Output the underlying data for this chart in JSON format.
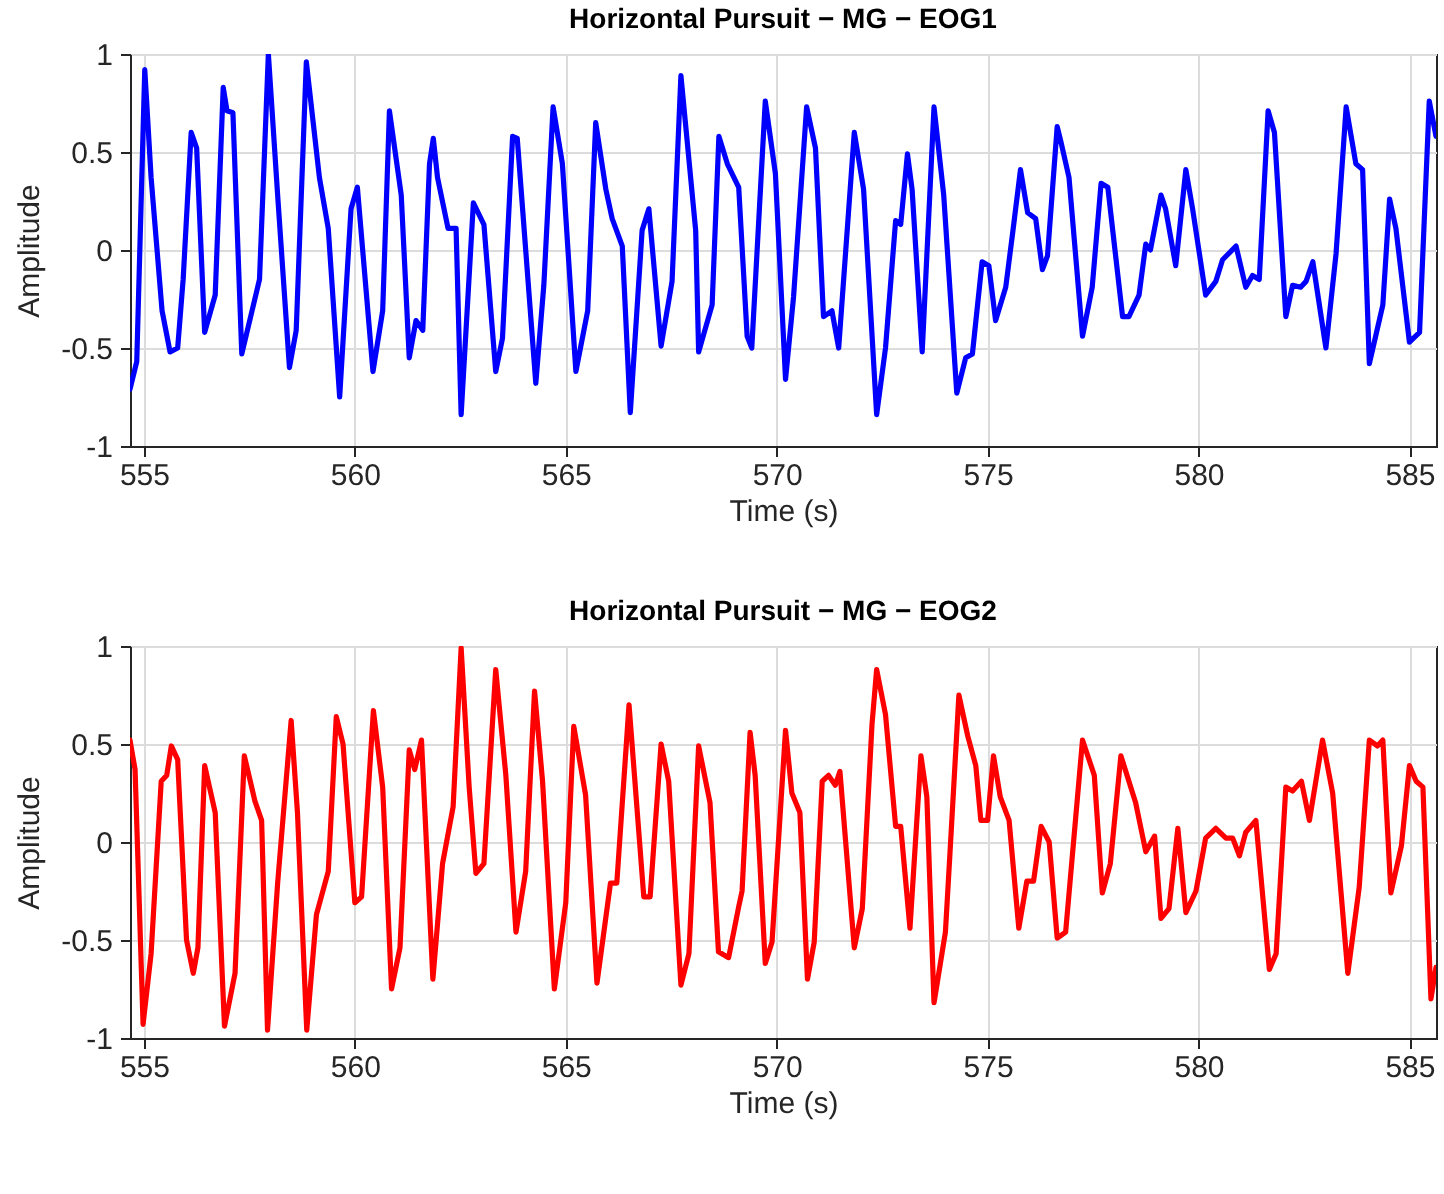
{
  "chart_data": [
    {
      "type": "line",
      "title": "Horizontal Pursuit − MG − EOG1",
      "xlabel": "Time (s)",
      "ylabel": "Amplitude",
      "xlim": [
        554.67,
        585.63
      ],
      "ylim": [
        -1,
        1
      ],
      "xticks": [
        555,
        560,
        565,
        570,
        575,
        580,
        585
      ],
      "yticks": [
        -1,
        -0.5,
        0,
        0.5,
        1
      ],
      "grid": true,
      "marker": "none",
      "line_style": "solid",
      "x": [
        554.67,
        554.83,
        555.02,
        555.17,
        555.43,
        555.62,
        555.8,
        555.93,
        556.12,
        556.25,
        556.44,
        556.69,
        556.88,
        556.97,
        557.11,
        557.32,
        557.74,
        557.95,
        558.17,
        558.45,
        558.61,
        558.85,
        559.16,
        559.37,
        559.64,
        559.91,
        560.06,
        560.43,
        560.66,
        560.82,
        561.1,
        561.29,
        561.45,
        561.61,
        561.77,
        561.86,
        561.96,
        562.21,
        562.4,
        562.52,
        562.81,
        563.06,
        563.34,
        563.5,
        563.74,
        563.85,
        564.29,
        564.48,
        564.7,
        564.92,
        565.24,
        565.52,
        565.71,
        565.95,
        566.1,
        566.34,
        566.53,
        566.81,
        566.97,
        567.26,
        567.52,
        567.73,
        568.08,
        568.15,
        568.47,
        568.63,
        568.83,
        569.1,
        569.3,
        569.41,
        569.73,
        569.97,
        570.21,
        570.4,
        570.71,
        570.92,
        571.11,
        571.31,
        571.47,
        571.84,
        572.06,
        572.37,
        572.58,
        572.82,
        572.94,
        573.1,
        573.21,
        573.45,
        573.73,
        573.96,
        574.27,
        574.48,
        574.64,
        574.87,
        575.03,
        575.19,
        575.43,
        575.59,
        575.78,
        575.95,
        576.14,
        576.3,
        576.42,
        576.65,
        576.74,
        576.93,
        577.25,
        577.48,
        577.69,
        577.85,
        578.2,
        578.35,
        578.59,
        578.75,
        578.86,
        579.11,
        579.22,
        579.46,
        579.7,
        579.86,
        580.17,
        580.41,
        580.57,
        580.89,
        581.12,
        581.28,
        581.44,
        581.65,
        581.8,
        582.07,
        582.23,
        582.42,
        582.55,
        582.71,
        583.02,
        583.26,
        583.5,
        583.73,
        583.89,
        584.05,
        584.37,
        584.53,
        584.68,
        585.0,
        585.24,
        585.47,
        585.63
      ],
      "series": [
        {
          "color": "#0000ff",
          "values": [
            -0.71,
            -0.57,
            0.92,
            0.37,
            -0.31,
            -0.52,
            -0.5,
            -0.15,
            0.6,
            0.52,
            -0.42,
            -0.23,
            0.83,
            0.71,
            0.7,
            -0.53,
            -0.15,
            1.0,
            0.28,
            -0.6,
            -0.41,
            0.96,
            0.37,
            0.11,
            -0.75,
            0.21,
            0.32,
            -0.62,
            -0.31,
            0.71,
            0.28,
            -0.55,
            -0.36,
            -0.41,
            0.44,
            0.57,
            0.37,
            0.11,
            0.11,
            -0.84,
            0.24,
            0.13,
            -0.62,
            -0.45,
            0.58,
            0.57,
            -0.68,
            -0.18,
            0.73,
            0.44,
            -0.62,
            -0.31,
            0.65,
            0.31,
            0.16,
            0.02,
            -0.83,
            0.1,
            0.21,
            -0.49,
            -0.16,
            0.89,
            0.1,
            -0.52,
            -0.28,
            0.58,
            0.44,
            0.32,
            -0.44,
            -0.5,
            0.76,
            0.39,
            -0.66,
            -0.24,
            0.73,
            0.52,
            -0.34,
            -0.31,
            -0.5,
            0.6,
            0.31,
            -0.84,
            -0.5,
            0.15,
            0.13,
            0.49,
            0.31,
            -0.52,
            0.73,
            0.28,
            -0.73,
            -0.55,
            -0.53,
            -0.06,
            -0.08,
            -0.36,
            -0.19,
            0.08,
            0.41,
            0.19,
            0.16,
            -0.1,
            -0.03,
            0.63,
            0.55,
            0.37,
            -0.44,
            -0.19,
            0.34,
            0.32,
            -0.34,
            -0.34,
            -0.23,
            0.03,
            0.0,
            0.28,
            0.21,
            -0.08,
            0.41,
            0.21,
            -0.23,
            -0.16,
            -0.05,
            0.02,
            -0.19,
            -0.13,
            -0.15,
            0.71,
            0.6,
            -0.34,
            -0.18,
            -0.19,
            -0.16,
            -0.06,
            -0.5,
            -0.02,
            0.73,
            0.44,
            0.41,
            -0.58,
            -0.28,
            0.26,
            0.11,
            -0.47,
            -0.42,
            0.76,
            0.58
          ]
        }
      ]
    },
    {
      "type": "line",
      "title": "Horizontal Pursuit − MG − EOG2",
      "xlabel": "Time (s)",
      "ylabel": "Amplitude",
      "xlim": [
        554.67,
        585.63
      ],
      "ylim": [
        -1,
        1
      ],
      "xticks": [
        555,
        560,
        565,
        570,
        575,
        580,
        585
      ],
      "yticks": [
        -1,
        -0.5,
        0,
        0.5,
        1
      ],
      "grid": true,
      "marker": "none",
      "line_style": "solid",
      "x": [
        554.67,
        554.79,
        554.98,
        555.17,
        555.41,
        555.54,
        555.65,
        555.8,
        556.01,
        556.17,
        556.28,
        556.44,
        556.69,
        556.91,
        557.16,
        557.38,
        557.63,
        557.79,
        557.93,
        558.17,
        558.49,
        558.64,
        558.86,
        559.09,
        559.37,
        559.56,
        559.72,
        560.0,
        560.16,
        560.44,
        560.66,
        560.87,
        561.07,
        561.29,
        561.42,
        561.58,
        561.85,
        562.08,
        562.33,
        562.52,
        562.71,
        562.87,
        563.06,
        563.34,
        563.58,
        563.82,
        564.05,
        564.26,
        564.45,
        564.73,
        565.0,
        565.19,
        565.47,
        565.74,
        566.06,
        566.21,
        566.5,
        566.85,
        567.0,
        567.26,
        567.44,
        567.73,
        567.92,
        568.15,
        568.42,
        568.62,
        568.86,
        569.1,
        569.18,
        569.37,
        569.49,
        569.73,
        569.89,
        570.21,
        570.36,
        570.55,
        570.73,
        570.89,
        571.08,
        571.23,
        571.39,
        571.5,
        571.84,
        572.03,
        572.26,
        572.37,
        572.58,
        572.82,
        572.94,
        573.16,
        573.42,
        573.56,
        573.73,
        574.0,
        574.11,
        574.32,
        574.53,
        574.72,
        574.84,
        575.0,
        575.14,
        575.3,
        575.51,
        575.74,
        575.93,
        576.09,
        576.27,
        576.46,
        576.65,
        576.85,
        577.25,
        577.53,
        577.72,
        577.91,
        578.16,
        578.51,
        578.75,
        578.96,
        579.11,
        579.3,
        579.51,
        579.7,
        579.94,
        580.17,
        580.41,
        580.65,
        580.81,
        580.97,
        581.12,
        581.36,
        581.68,
        581.84,
        582.07,
        582.23,
        582.44,
        582.63,
        582.94,
        583.18,
        583.54,
        583.81,
        584.05,
        584.24,
        584.37,
        584.56,
        584.81,
        585.0,
        585.16,
        585.32,
        585.51,
        585.63
      ],
      "series": [
        {
          "color": "#ff0000",
          "values": [
            0.52,
            0.37,
            -0.93,
            -0.57,
            0.31,
            0.34,
            0.49,
            0.42,
            -0.5,
            -0.67,
            -0.54,
            0.39,
            0.15,
            -0.94,
            -0.67,
            0.44,
            0.21,
            0.11,
            -0.96,
            -0.21,
            0.62,
            0.15,
            -0.96,
            -0.37,
            -0.15,
            0.64,
            0.5,
            -0.31,
            -0.28,
            0.67,
            0.28,
            -0.75,
            -0.54,
            0.47,
            0.37,
            0.52,
            -0.7,
            -0.11,
            0.18,
            0.99,
            0.28,
            -0.16,
            -0.11,
            0.88,
            0.34,
            -0.46,
            -0.15,
            0.77,
            0.31,
            -0.75,
            -0.31,
            0.59,
            0.24,
            -0.72,
            -0.21,
            -0.21,
            0.7,
            -0.28,
            -0.28,
            0.5,
            0.31,
            -0.73,
            -0.57,
            0.49,
            0.2,
            -0.56,
            -0.59,
            -0.33,
            -0.25,
            0.56,
            0.34,
            -0.62,
            -0.51,
            0.57,
            0.25,
            0.15,
            -0.7,
            -0.51,
            0.31,
            0.34,
            0.29,
            0.36,
            -0.54,
            -0.34,
            0.6,
            0.88,
            0.65,
            0.08,
            0.08,
            -0.44,
            0.44,
            0.23,
            -0.82,
            -0.46,
            -0.05,
            0.75,
            0.54,
            0.39,
            0.11,
            0.11,
            0.44,
            0.23,
            0.11,
            -0.44,
            -0.2,
            -0.2,
            0.08,
            0.0,
            -0.49,
            -0.46,
            0.52,
            0.34,
            -0.26,
            -0.11,
            0.44,
            0.2,
            -0.05,
            0.03,
            -0.39,
            -0.34,
            0.07,
            -0.36,
            -0.25,
            0.02,
            0.07,
            0.02,
            0.02,
            -0.07,
            0.05,
            0.11,
            -0.65,
            -0.57,
            0.28,
            0.26,
            0.31,
            0.11,
            0.52,
            0.25,
            -0.67,
            -0.23,
            0.52,
            0.49,
            0.52,
            -0.26,
            -0.02,
            0.39,
            0.31,
            0.28,
            -0.8,
            -0.64
          ]
        }
      ]
    }
  ]
}
